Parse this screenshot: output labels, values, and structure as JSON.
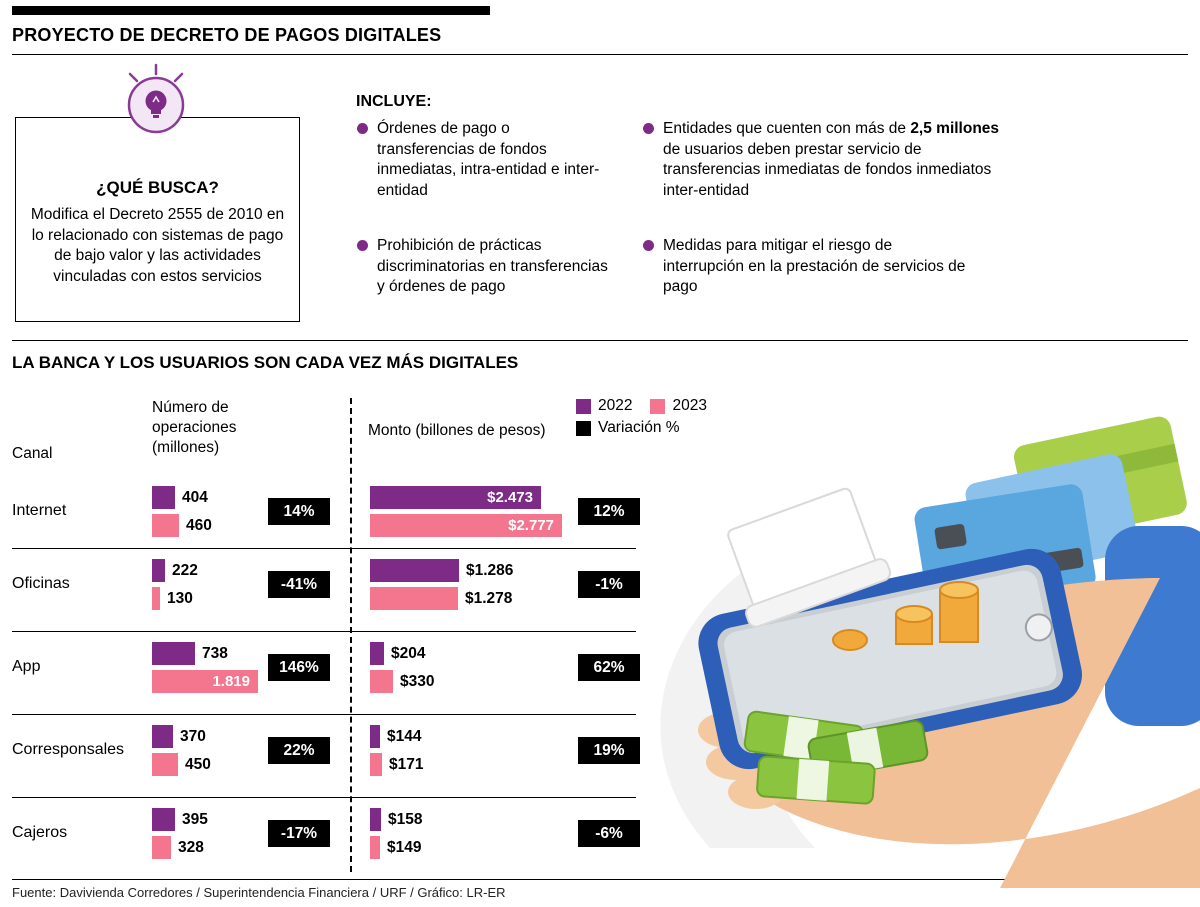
{
  "header": {
    "title": "PROYECTO DE DECRETO DE PAGOS DIGITALES"
  },
  "que_busca": {
    "title": "¿QUÉ BUSCA?",
    "body": "Modifica el Decreto 2555 de 2010 en lo relacionado con sistemas de pago de bajo valor y las actividades vinculadas con estos servicios"
  },
  "incluye": {
    "title": "INCLUYE:",
    "items": [
      {
        "pre": "Órdenes de pago o transferencias de fondos inmediatas, intra-entidad e inter-entidad",
        "bold": "",
        "post": ""
      },
      {
        "pre": "Prohibición de prácticas discriminatorias en transferencias y órdenes de pago",
        "bold": "",
        "post": ""
      },
      {
        "pre": "Entidades que cuenten con más de ",
        "bold": "2,5 millones",
        "post": " de usuarios deben prestar servicio de transferencias inmediatas de fondos inmediatos inter-entidad"
      },
      {
        "pre": "Medidas para mitigar el riesgo de interrupción en la prestación de servicios de pago",
        "bold": "",
        "post": ""
      }
    ]
  },
  "chart_data": {
    "type": "bar",
    "title": "LA BANCA Y LOS USUARIOS SON CADA VEZ MÁS DIGITALES",
    "col_channel": "Canal",
    "col_operations": "Número de operaciones (millones)",
    "col_amount": "Monto (billones de pesos)",
    "legend": [
      {
        "label": "2022",
        "color": "#7d2b87"
      },
      {
        "label": "2023",
        "color": "#f4758e"
      },
      {
        "label": "Variación %",
        "color": "#000000"
      }
    ],
    "colors": {
      "y2022": "#7d2b87",
      "y2023": "#f4758e",
      "variation": "#000000"
    },
    "units": {
      "operations": "millones",
      "amount": "billones de pesos"
    },
    "rows": [
      {
        "channel": "Internet",
        "ops": {
          "y2022": {
            "value": 404,
            "label": "404"
          },
          "y2023": {
            "value": 460,
            "label": "460"
          },
          "variation": "14%"
        },
        "amt": {
          "y2022": {
            "value": 2473,
            "label": "$2.473"
          },
          "y2023": {
            "value": 2777,
            "label": "$2.777"
          },
          "variation": "12%"
        }
      },
      {
        "channel": "Oficinas",
        "ops": {
          "y2022": {
            "value": 222,
            "label": "222"
          },
          "y2023": {
            "value": 130,
            "label": "130"
          },
          "variation": "-41%"
        },
        "amt": {
          "y2022": {
            "value": 1286,
            "label": "$1.286"
          },
          "y2023": {
            "value": 1278,
            "label": "$1.278"
          },
          "variation": "-1%"
        }
      },
      {
        "channel": "App",
        "ops": {
          "y2022": {
            "value": 738,
            "label": "738"
          },
          "y2023": {
            "value": 1819,
            "label": "1.819"
          },
          "variation": "146%"
        },
        "amt": {
          "y2022": {
            "value": 204,
            "label": "$204"
          },
          "y2023": {
            "value": 330,
            "label": "$330"
          },
          "variation": "62%"
        }
      },
      {
        "channel": "Corresponsales",
        "ops": {
          "y2022": {
            "value": 370,
            "label": "370"
          },
          "y2023": {
            "value": 450,
            "label": "450"
          },
          "variation": "22%"
        },
        "amt": {
          "y2022": {
            "value": 144,
            "label": "$144"
          },
          "y2023": {
            "value": 171,
            "label": "$171"
          },
          "variation": "19%"
        }
      },
      {
        "channel": "Cajeros",
        "ops": {
          "y2022": {
            "value": 395,
            "label": "395"
          },
          "y2023": {
            "value": 328,
            "label": "328"
          },
          "variation": "-17%"
        },
        "amt": {
          "y2022": {
            "value": 158,
            "label": "$158"
          },
          "y2023": {
            "value": 149,
            "label": "$149"
          },
          "variation": "-6%"
        }
      }
    ]
  },
  "footer": {
    "source": "Fuente: Davivienda Corredores / Superintendencia Financiera / URF / Gráfico: LR-ER"
  }
}
